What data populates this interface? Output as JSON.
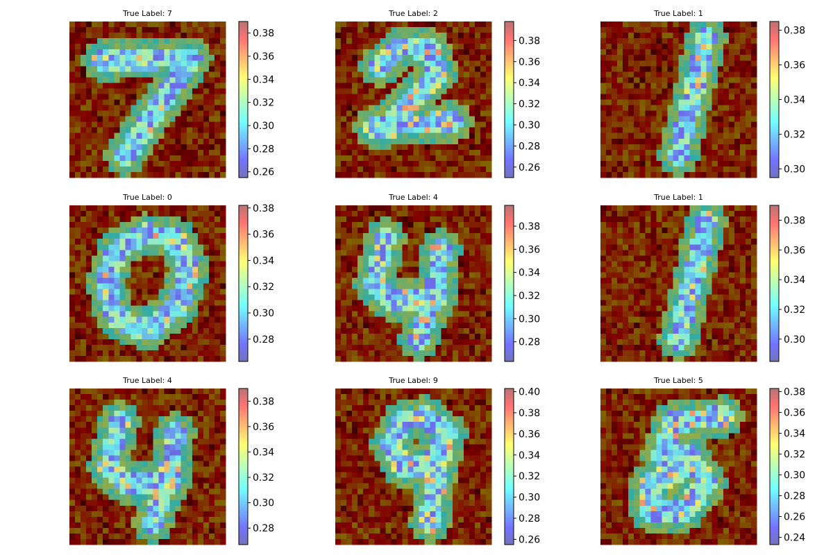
{
  "colors": {
    "background": "#ffffff",
    "axis": "#000000",
    "colormap": "jet",
    "colormap_stops": [
      "#00007f",
      "#0000ff",
      "#007fff",
      "#00ffff",
      "#7fff7f",
      "#ffff00",
      "#ff7f00",
      "#ff0000",
      "#7f0000"
    ],
    "digit_overlay_note": "heatmap overlaid on grayscale digit image"
  },
  "chart_data": [
    {
      "type": "heatmap",
      "title": "True Label: 7",
      "digit": "7",
      "colorbar_range": [
        0.255,
        0.39
      ],
      "colorbar_ticks": [
        "0.26",
        "0.28",
        "0.30",
        "0.32",
        "0.34",
        "0.36",
        "0.38"
      ],
      "colorbar_tick_values": [
        0.26,
        0.28,
        0.3,
        0.32,
        0.34,
        0.36,
        0.38
      ]
    },
    {
      "type": "heatmap",
      "title": "True Label: 2",
      "digit": "2",
      "colorbar_range": [
        0.25,
        0.398
      ],
      "colorbar_ticks": [
        "0.26",
        "0.28",
        "0.30",
        "0.32",
        "0.34",
        "0.36",
        "0.38"
      ],
      "colorbar_tick_values": [
        0.26,
        0.28,
        0.3,
        0.32,
        0.34,
        0.36,
        0.38
      ]
    },
    {
      "type": "heatmap",
      "title": "True Label: 1",
      "digit": "1",
      "colorbar_range": [
        0.295,
        0.385
      ],
      "colorbar_ticks": [
        "0.30",
        "0.32",
        "0.34",
        "0.36",
        "0.38"
      ],
      "colorbar_tick_values": [
        0.3,
        0.32,
        0.34,
        0.36,
        0.38
      ]
    },
    {
      "type": "heatmap",
      "title": "True Label: 0",
      "digit": "0",
      "colorbar_range": [
        0.263,
        0.382
      ],
      "colorbar_ticks": [
        "0.28",
        "0.30",
        "0.32",
        "0.34",
        "0.36",
        "0.38"
      ],
      "colorbar_tick_values": [
        0.28,
        0.3,
        0.32,
        0.34,
        0.36,
        0.38
      ]
    },
    {
      "type": "heatmap",
      "title": "True Label: 4",
      "digit": "4",
      "colorbar_range": [
        0.263,
        0.398
      ],
      "colorbar_ticks": [
        "0.28",
        "0.30",
        "0.32",
        "0.34",
        "0.36",
        "0.38"
      ],
      "colorbar_tick_values": [
        0.28,
        0.3,
        0.32,
        0.34,
        0.36,
        0.38
      ]
    },
    {
      "type": "heatmap",
      "title": "True Label: 1",
      "digit": "1",
      "colorbar_range": [
        0.285,
        0.39
      ],
      "colorbar_ticks": [
        "0.30",
        "0.32",
        "0.34",
        "0.36",
        "0.38"
      ],
      "colorbar_tick_values": [
        0.3,
        0.32,
        0.34,
        0.36,
        0.38
      ]
    },
    {
      "type": "heatmap",
      "title": "True Label: 4",
      "digit": "4",
      "colorbar_range": [
        0.267,
        0.39
      ],
      "colorbar_ticks": [
        "0.28",
        "0.30",
        "0.32",
        "0.34",
        "0.36",
        "0.38"
      ],
      "colorbar_tick_values": [
        0.28,
        0.3,
        0.32,
        0.34,
        0.36,
        0.38
      ]
    },
    {
      "type": "heatmap",
      "title": "True Label: 9",
      "digit": "9",
      "colorbar_range": [
        0.255,
        0.403
      ],
      "colorbar_ticks": [
        "0.26",
        "0.28",
        "0.30",
        "0.32",
        "0.34",
        "0.36",
        "0.38",
        "0.40"
      ],
      "colorbar_tick_values": [
        0.26,
        0.28,
        0.3,
        0.32,
        0.34,
        0.36,
        0.38,
        0.4
      ]
    },
    {
      "type": "heatmap",
      "title": "True Label: 5",
      "digit": "5",
      "colorbar_range": [
        0.233,
        0.383
      ],
      "colorbar_ticks": [
        "0.24",
        "0.26",
        "0.28",
        "0.30",
        "0.32",
        "0.34",
        "0.36",
        "0.38"
      ],
      "colorbar_tick_values": [
        0.24,
        0.26,
        0.28,
        0.3,
        0.32,
        0.34,
        0.36,
        0.38
      ]
    }
  ]
}
